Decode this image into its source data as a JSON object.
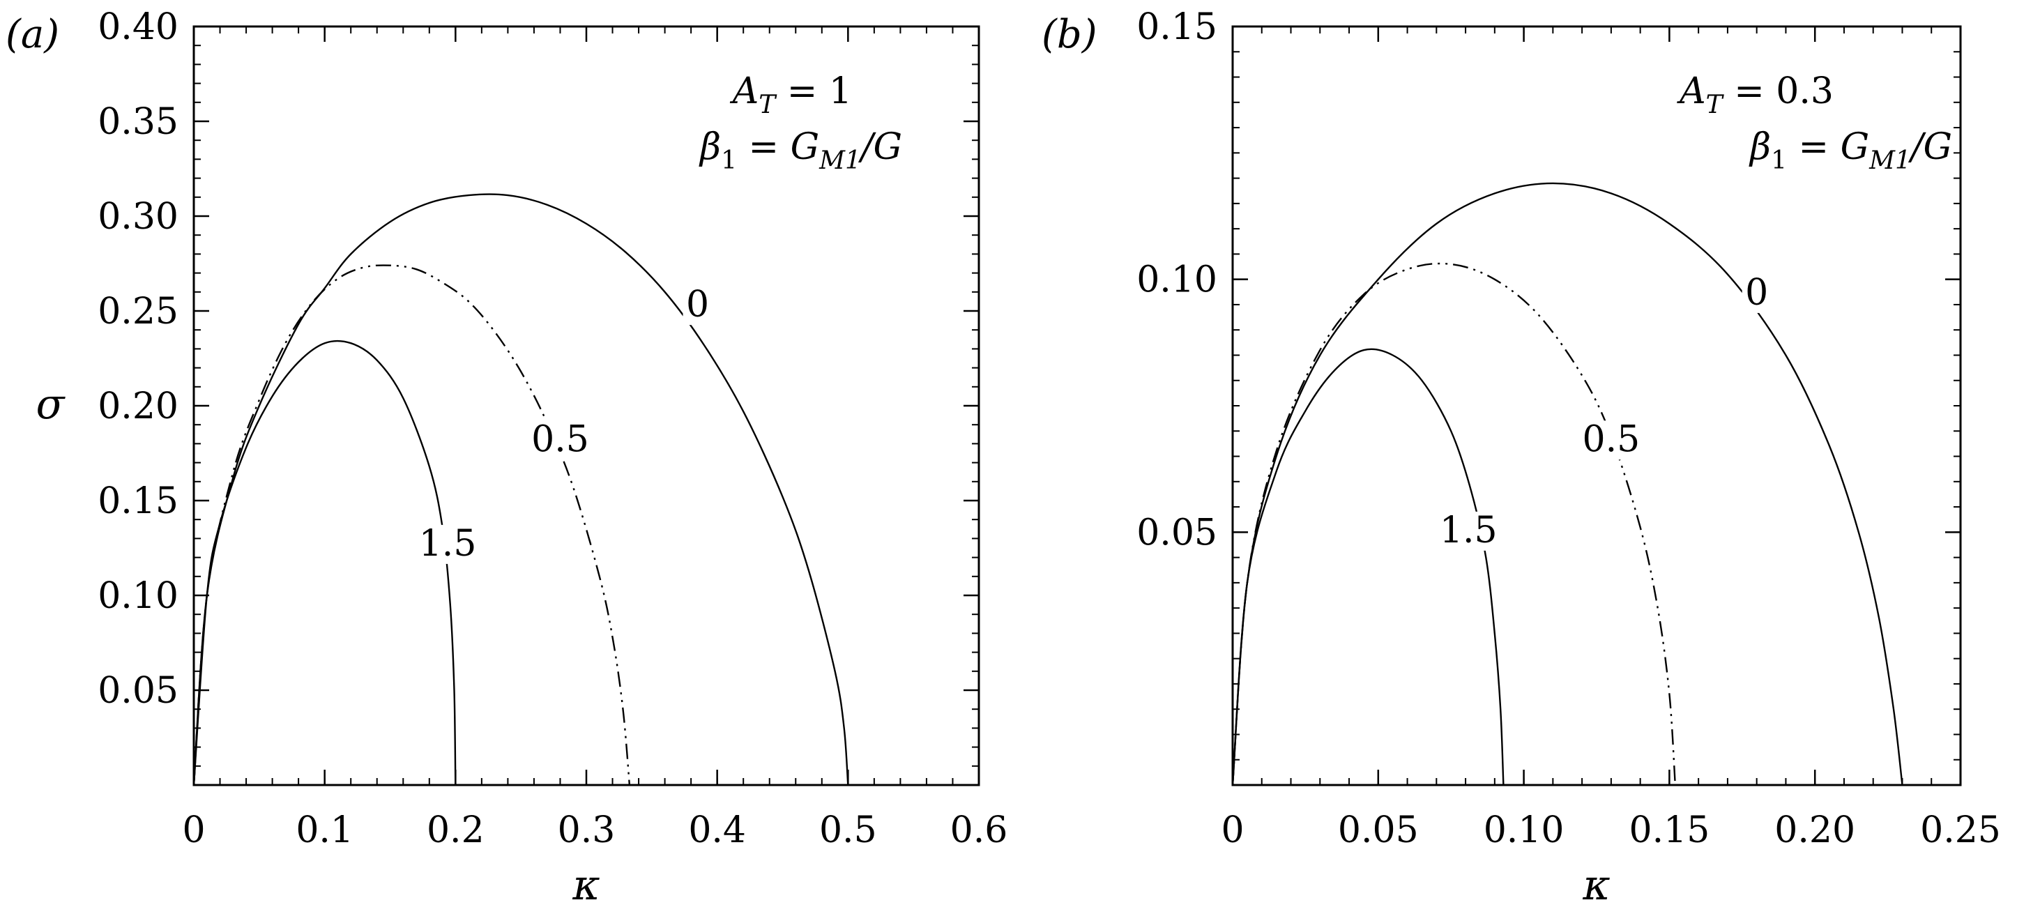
{
  "chart_data": [
    {
      "type": "line",
      "panel_label": "(a)",
      "xlabel": "κ",
      "ylabel": "σ",
      "xlim": [
        0,
        0.6
      ],
      "ylim": [
        0,
        0.4
      ],
      "x_ticks": [
        "0",
        "0.1",
        "0.2",
        "0.3",
        "0.4",
        "0.5",
        "0.6"
      ],
      "y_ticks": [
        "0.05",
        "0.10",
        "0.15",
        "0.20",
        "0.25",
        "0.30",
        "0.35",
        "0.40"
      ],
      "annotation": {
        "line1_var": "A",
        "line1_sub": "T",
        "line1_value": " = 1",
        "line2_var": "β",
        "line2_sub": "1",
        "line2_eq": " = G",
        "line2_sub2": "M1",
        "line2_tail": "/G"
      },
      "series": [
        {
          "label": "0",
          "style": "solid",
          "points": [
            [
              0,
              0
            ],
            [
              0.01,
              0.1
            ],
            [
              0.03,
              0.162
            ],
            [
              0.05,
              0.2
            ],
            [
              0.08,
              0.243
            ],
            [
              0.1,
              0.262
            ],
            [
              0.12,
              0.28
            ],
            [
              0.15,
              0.297
            ],
            [
              0.18,
              0.307
            ],
            [
              0.21,
              0.311
            ],
            [
              0.24,
              0.311
            ],
            [
              0.27,
              0.306
            ],
            [
              0.3,
              0.296
            ],
            [
              0.33,
              0.281
            ],
            [
              0.36,
              0.26
            ],
            [
              0.39,
              0.232
            ],
            [
              0.42,
              0.197
            ],
            [
              0.45,
              0.152
            ],
            [
              0.47,
              0.113
            ],
            [
              0.49,
              0.06
            ],
            [
              0.497,
              0.03
            ],
            [
              0.5,
              0
            ]
          ]
        },
        {
          "label": "0.5",
          "style": "dashdotdot",
          "points": [
            [
              0,
              0
            ],
            [
              0.01,
              0.1
            ],
            [
              0.03,
              0.165
            ],
            [
              0.05,
              0.203
            ],
            [
              0.07,
              0.233
            ],
            [
              0.09,
              0.254
            ],
            [
              0.11,
              0.267
            ],
            [
              0.13,
              0.273
            ],
            [
              0.15,
              0.274
            ],
            [
              0.17,
              0.272
            ],
            [
              0.19,
              0.265
            ],
            [
              0.21,
              0.255
            ],
            [
              0.23,
              0.239
            ],
            [
              0.25,
              0.218
            ],
            [
              0.27,
              0.191
            ],
            [
              0.29,
              0.157
            ],
            [
              0.31,
              0.11
            ],
            [
              0.32,
              0.078
            ],
            [
              0.328,
              0.04
            ],
            [
              0.333,
              0
            ]
          ]
        },
        {
          "label": "1.5",
          "style": "solid",
          "points": [
            [
              0,
              0
            ],
            [
              0.01,
              0.1
            ],
            [
              0.02,
              0.138
            ],
            [
              0.04,
              0.178
            ],
            [
              0.06,
              0.205
            ],
            [
              0.08,
              0.223
            ],
            [
              0.1,
              0.233
            ],
            [
              0.12,
              0.233
            ],
            [
              0.14,
              0.224
            ],
            [
              0.16,
              0.204
            ],
            [
              0.18,
              0.168
            ],
            [
              0.19,
              0.136
            ],
            [
              0.196,
              0.095
            ],
            [
              0.199,
              0.05
            ],
            [
              0.2,
              0
            ]
          ]
        }
      ],
      "curve_labels": [
        {
          "text": "0",
          "x": 0.385,
          "y": 0.247
        },
        {
          "text": "0.5",
          "x": 0.28,
          "y": 0.176
        },
        {
          "text": "1.5",
          "x": 0.194,
          "y": 0.121
        }
      ]
    },
    {
      "type": "line",
      "panel_label": "(b)",
      "xlabel": "κ",
      "ylabel": "",
      "xlim": [
        0,
        0.25
      ],
      "ylim": [
        0,
        0.15
      ],
      "x_ticks": [
        "0",
        "0.05",
        "0.10",
        "0.15",
        "0.20",
        "0.25"
      ],
      "y_ticks": [
        "0.05",
        "0.10",
        "0.15"
      ],
      "annotation": {
        "line1_var": "A",
        "line1_sub": "T",
        "line1_value": " = 0.3",
        "line2_var": "β",
        "line2_sub": "1",
        "line2_eq": " = G",
        "line2_sub2": "M1",
        "line2_tail": "/G"
      },
      "series": [
        {
          "label": "0",
          "style": "solid",
          "points": [
            [
              0,
              0
            ],
            [
              0.005,
              0.04
            ],
            [
              0.015,
              0.065
            ],
            [
              0.03,
              0.085
            ],
            [
              0.05,
              0.1
            ],
            [
              0.07,
              0.111
            ],
            [
              0.09,
              0.117
            ],
            [
              0.11,
              0.119
            ],
            [
              0.13,
              0.117
            ],
            [
              0.15,
              0.111
            ],
            [
              0.17,
              0.101
            ],
            [
              0.19,
              0.085
            ],
            [
              0.205,
              0.067
            ],
            [
              0.215,
              0.05
            ],
            [
              0.222,
              0.033
            ],
            [
              0.227,
              0.015
            ],
            [
              0.23,
              0
            ]
          ]
        },
        {
          "label": "0.5",
          "style": "dashdotdot",
          "points": [
            [
              0,
              0
            ],
            [
              0.005,
              0.04
            ],
            [
              0.015,
              0.066
            ],
            [
              0.03,
              0.086
            ],
            [
              0.045,
              0.097
            ],
            [
              0.06,
              0.102
            ],
            [
              0.075,
              0.103
            ],
            [
              0.09,
              0.1
            ],
            [
              0.105,
              0.093
            ],
            [
              0.12,
              0.081
            ],
            [
              0.13,
              0.069
            ],
            [
              0.14,
              0.051
            ],
            [
              0.146,
              0.035
            ],
            [
              0.15,
              0.018
            ],
            [
              0.152,
              0
            ]
          ]
        },
        {
          "label": "1.5",
          "style": "solid",
          "points": [
            [
              0,
              0
            ],
            [
              0.005,
              0.04
            ],
            [
              0.015,
              0.062
            ],
            [
              0.025,
              0.074
            ],
            [
              0.035,
              0.082
            ],
            [
              0.045,
              0.086
            ],
            [
              0.055,
              0.085
            ],
            [
              0.065,
              0.08
            ],
            [
              0.075,
              0.07
            ],
            [
              0.082,
              0.058
            ],
            [
              0.087,
              0.045
            ],
            [
              0.09,
              0.03
            ],
            [
              0.092,
              0.015
            ],
            [
              0.093,
              0
            ]
          ]
        }
      ],
      "curve_labels": [
        {
          "text": "0",
          "x": 0.18,
          "y": 0.095
        },
        {
          "text": "0.5",
          "x": 0.13,
          "y": 0.066
        },
        {
          "text": "1.5",
          "x": 0.081,
          "y": 0.048
        }
      ]
    }
  ]
}
